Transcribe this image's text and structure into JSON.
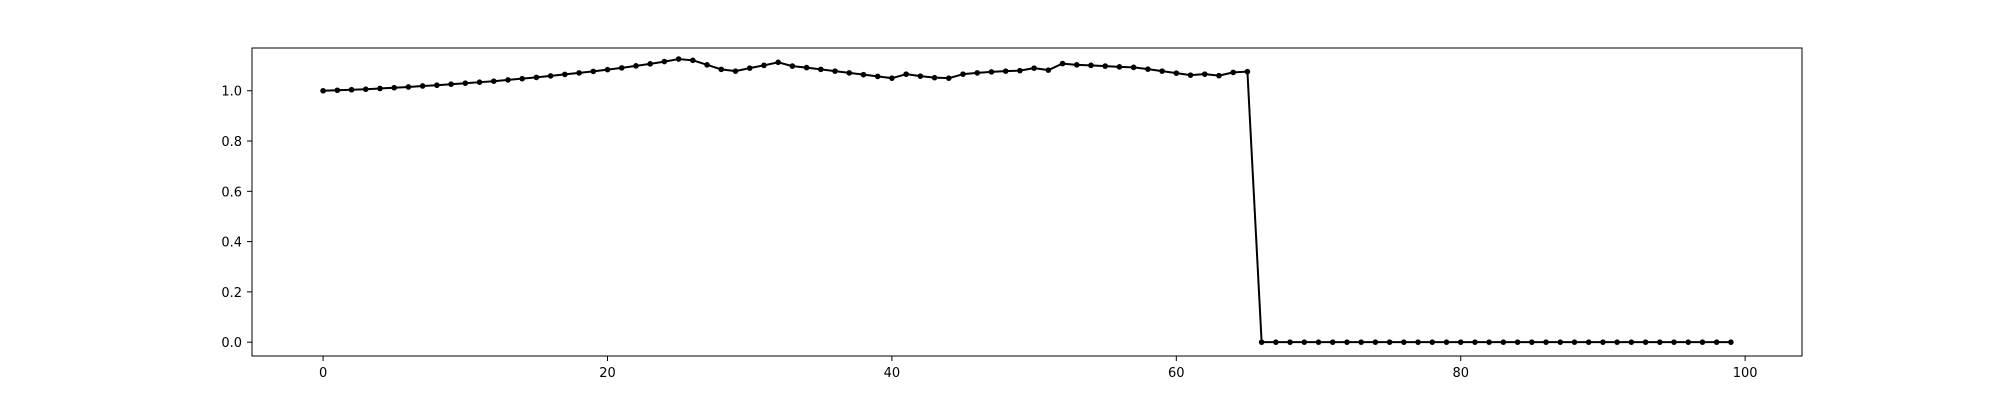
{
  "chart_data": {
    "type": "line",
    "title": "",
    "xlabel": "",
    "ylabel": "",
    "xlim": [
      -5,
      104
    ],
    "ylim": [
      -0.055,
      1.17
    ],
    "xticks": [
      0,
      20,
      40,
      60,
      80,
      100
    ],
    "yticks": [
      0.0,
      0.2,
      0.4,
      0.6,
      0.8,
      1.0
    ],
    "xtick_labels": [
      "0",
      "20",
      "40",
      "60",
      "80",
      "100"
    ],
    "ytick_labels": [
      "0.0",
      "0.2",
      "0.4",
      "0.6",
      "0.8",
      "1.0"
    ],
    "grid": false,
    "legend": "none",
    "line_color": "#000000",
    "marker": "circle",
    "series": [
      {
        "x": [
          0,
          1,
          2,
          3,
          4,
          5,
          6,
          7,
          8,
          9,
          10,
          11,
          12,
          13,
          14,
          15,
          16,
          17,
          18,
          19,
          20,
          21,
          22,
          23,
          24,
          25,
          26,
          27,
          28,
          29,
          30,
          31,
          32,
          33,
          34,
          35,
          36,
          37,
          38,
          39,
          40,
          41,
          42,
          43,
          44,
          45,
          46,
          47,
          48,
          49,
          50,
          51,
          52,
          53,
          54,
          55,
          56,
          57,
          58,
          59,
          60,
          61,
          62,
          63,
          64,
          65,
          66,
          67,
          68,
          69,
          70,
          71,
          72,
          73,
          74,
          75,
          76,
          77,
          78,
          79,
          80,
          81,
          82,
          83,
          84,
          85,
          86,
          87,
          88,
          89,
          90,
          91,
          92,
          93,
          94,
          95,
          96,
          97,
          98,
          99
        ],
        "values": [
          1.0,
          1.002,
          1.004,
          1.006,
          1.009,
          1.012,
          1.015,
          1.019,
          1.022,
          1.026,
          1.03,
          1.034,
          1.038,
          1.043,
          1.048,
          1.053,
          1.059,
          1.065,
          1.071,
          1.077,
          1.084,
          1.091,
          1.099,
          1.107,
          1.116,
          1.126,
          1.121,
          1.103,
          1.085,
          1.078,
          1.09,
          1.101,
          1.113,
          1.098,
          1.092,
          1.085,
          1.078,
          1.071,
          1.064,
          1.057,
          1.05,
          1.066,
          1.058,
          1.052,
          1.05,
          1.066,
          1.071,
          1.075,
          1.078,
          1.08,
          1.09,
          1.082,
          1.108,
          1.103,
          1.101,
          1.098,
          1.095,
          1.093,
          1.086,
          1.078,
          1.07,
          1.062,
          1.066,
          1.06,
          1.073,
          1.076,
          0.0,
          0.0,
          0.0,
          0.0,
          0.0,
          0.0,
          0.0,
          0.0,
          0.0,
          0.0,
          0.0,
          0.0,
          0.0,
          0.0,
          0.0,
          0.0,
          0.0,
          0.0,
          0.0,
          0.0,
          0.0,
          0.0,
          0.0,
          0.0,
          0.0,
          0.0,
          0.0,
          0.0,
          0.0,
          0.0,
          0.0,
          0.0,
          0.0,
          0.0
        ]
      }
    ]
  }
}
